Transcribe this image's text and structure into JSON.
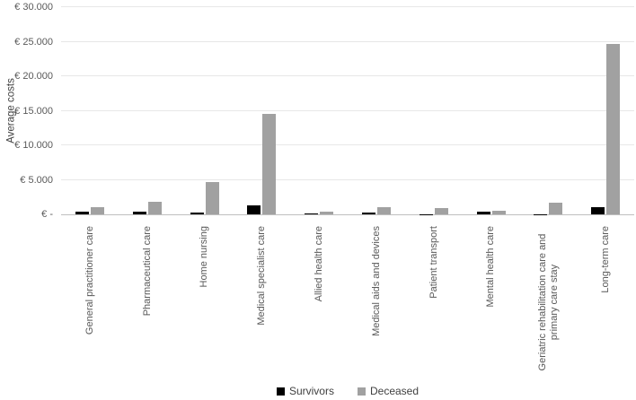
{
  "chart_data": {
    "type": "bar",
    "title": "",
    "xlabel": "",
    "ylabel": "Average costs",
    "ylim": [
      0,
      30000
    ],
    "ytick_step": 5000,
    "ytick_labels": [
      "€ -",
      "€ 5.000",
      "€ 10.000",
      "€ 15.000",
      "€ 20.000",
      "€ 25.000",
      "€ 30.000"
    ],
    "grid": true,
    "legend_position": "bottom",
    "categories": [
      "General practitioner care",
      "Pharmaceutical care",
      "Home nursing",
      "Medical specialist care",
      "Allied health care",
      "Medical aids and devices",
      "Patient transport",
      "Mental health care",
      "Geriatric rehabilitation care and\nprimary care stay",
      "Long-term care"
    ],
    "series": [
      {
        "name": "Survivors",
        "color": "#000000",
        "values": [
          350,
          450,
          250,
          1250,
          150,
          200,
          50,
          350,
          50,
          1100
        ]
      },
      {
        "name": "Deceased",
        "color": "#a1a1a1",
        "values": [
          1000,
          1850,
          4650,
          14500,
          350,
          1000,
          900,
          500,
          1700,
          24700
        ]
      }
    ]
  },
  "colors": {
    "gridline": "#e7e7e7",
    "axis_line": "#bfbfbf",
    "tick_text": "#595959",
    "legend_text": "#404040"
  }
}
